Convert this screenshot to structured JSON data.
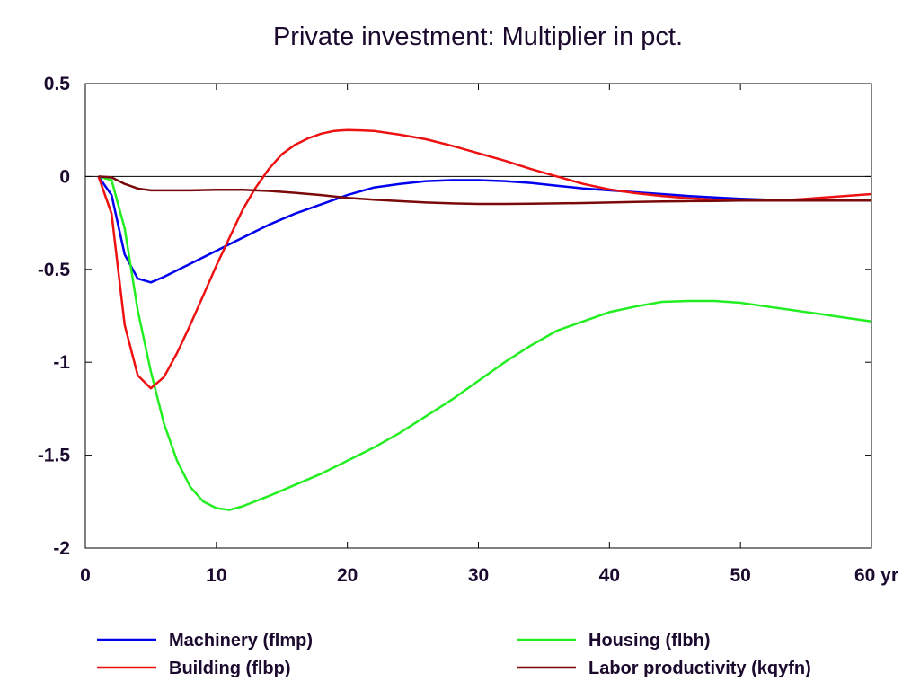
{
  "chart_data": {
    "type": "line",
    "title": "Private investment: Multiplier in pct.",
    "xlabel": "",
    "ylabel": "",
    "x_unit_label": "yr",
    "xlim": [
      0,
      60
    ],
    "ylim": [
      -2,
      0.5
    ],
    "x_ticks": [
      0,
      10,
      20,
      30,
      40,
      50,
      60
    ],
    "x_tick_labels": [
      "0",
      "10",
      "20",
      "30",
      "40",
      "50",
      "60 yr"
    ],
    "y_ticks": [
      0.5,
      0,
      -0.5,
      -1,
      -1.5,
      -2
    ],
    "y_tick_labels": [
      "0.5",
      "0",
      "-0.5",
      "-1",
      "-1.5",
      "-2"
    ],
    "zero_line": true,
    "grid": false,
    "legend_position": "bottom",
    "series": [
      {
        "name": "Machinery (flmp)",
        "color": "#0000ee",
        "x": [
          1,
          2,
          3,
          4,
          5,
          6,
          8,
          10,
          12,
          14,
          16,
          18,
          20,
          22,
          24,
          26,
          28,
          30,
          32,
          34,
          36,
          38,
          40,
          42,
          44,
          46,
          48,
          50,
          52,
          54,
          56,
          58,
          60
        ],
        "y": [
          0,
          -0.1,
          -0.42,
          -0.55,
          -0.57,
          -0.54,
          -0.47,
          -0.4,
          -0.33,
          -0.26,
          -0.2,
          -0.15,
          -0.1,
          -0.06,
          -0.04,
          -0.025,
          -0.02,
          -0.02,
          -0.025,
          -0.035,
          -0.05,
          -0.065,
          -0.075,
          -0.085,
          -0.095,
          -0.105,
          -0.113,
          -0.12,
          -0.125,
          -0.13,
          -0.13,
          -0.13,
          -0.13
        ]
      },
      {
        "name": "Housing (flbh)",
        "color": "#22ee22",
        "x": [
          1,
          2,
          3,
          4,
          5,
          6,
          7,
          8,
          9,
          10,
          11,
          12,
          14,
          16,
          18,
          20,
          22,
          24,
          26,
          28,
          30,
          32,
          34,
          36,
          38,
          40,
          42,
          44,
          46,
          48,
          50,
          52,
          54,
          56,
          58,
          60
        ],
        "y": [
          0,
          -0.02,
          -0.28,
          -0.72,
          -1.05,
          -1.33,
          -1.53,
          -1.67,
          -1.75,
          -1.785,
          -1.795,
          -1.775,
          -1.72,
          -1.66,
          -1.6,
          -1.53,
          -1.46,
          -1.38,
          -1.29,
          -1.2,
          -1.1,
          -1.0,
          -0.91,
          -0.83,
          -0.78,
          -0.73,
          -0.7,
          -0.675,
          -0.67,
          -0.67,
          -0.68,
          -0.7,
          -0.72,
          -0.74,
          -0.76,
          -0.78
        ]
      },
      {
        "name": "Building (flbp)",
        "color": "#ee1111",
        "x": [
          1,
          2,
          3,
          4,
          5,
          6,
          7,
          8,
          9,
          10,
          11,
          12,
          13,
          14,
          15,
          16,
          17,
          18,
          19,
          20,
          21,
          22,
          24,
          26,
          28,
          30,
          32,
          34,
          36,
          38,
          40,
          42,
          44,
          46,
          48,
          50,
          52,
          54,
          56,
          58,
          60
        ],
        "y": [
          0,
          -0.2,
          -0.8,
          -1.07,
          -1.14,
          -1.08,
          -0.95,
          -0.8,
          -0.64,
          -0.48,
          -0.33,
          -0.18,
          -0.06,
          0.04,
          0.12,
          0.17,
          0.205,
          0.23,
          0.245,
          0.25,
          0.248,
          0.245,
          0.225,
          0.2,
          0.165,
          0.125,
          0.085,
          0.04,
          0.0,
          -0.04,
          -0.07,
          -0.09,
          -0.105,
          -0.117,
          -0.125,
          -0.13,
          -0.13,
          -0.125,
          -0.115,
          -0.105,
          -0.095
        ]
      },
      {
        "name": "Labor productivity (kqyfn)",
        "color": "#7a0a0a",
        "x": [
          1,
          2,
          3,
          4,
          5,
          6,
          8,
          10,
          12,
          14,
          16,
          18,
          20,
          22,
          24,
          26,
          28,
          30,
          32,
          34,
          36,
          38,
          40,
          42,
          44,
          46,
          48,
          50,
          52,
          54,
          56,
          58,
          60
        ],
        "y": [
          0,
          -0.005,
          -0.04,
          -0.065,
          -0.075,
          -0.075,
          -0.075,
          -0.072,
          -0.072,
          -0.078,
          -0.088,
          -0.1,
          -0.115,
          -0.125,
          -0.133,
          -0.14,
          -0.145,
          -0.148,
          -0.148,
          -0.147,
          -0.145,
          -0.143,
          -0.14,
          -0.137,
          -0.135,
          -0.133,
          -0.132,
          -0.13,
          -0.13,
          -0.13,
          -0.13,
          -0.13,
          -0.13
        ]
      }
    ]
  }
}
